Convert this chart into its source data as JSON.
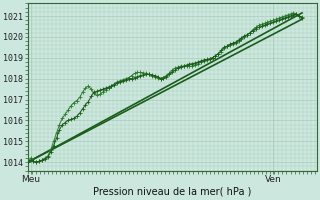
{
  "title": "Pression niveau de la mer( hPa )",
  "ylabel_ticks": [
    1014,
    1015,
    1016,
    1017,
    1018,
    1019,
    1020,
    1021
  ],
  "ylim": [
    1013.6,
    1021.6
  ],
  "xlim": [
    0,
    100
  ],
  "xtick_positions": [
    1,
    85
  ],
  "xtick_labels": [
    "Meu",
    "Ven"
  ],
  "bg_color": "#cce8de",
  "grid_color": "#aaccbb",
  "line_color_dark": "#1a5c1a",
  "line_color_med": "#2e7d2e",
  "n_points": 96,
  "series_wavy1": [
    1014.0,
    1014.2,
    1014.05,
    1014.0,
    1014.05,
    1014.1,
    1014.2,
    1014.3,
    1014.6,
    1015.0,
    1015.4,
    1015.8,
    1016.1,
    1016.3,
    1016.5,
    1016.7,
    1016.85,
    1016.95,
    1017.1,
    1017.35,
    1017.55,
    1017.65,
    1017.5,
    1017.3,
    1017.2,
    1017.25,
    1017.35,
    1017.45,
    1017.55,
    1017.65,
    1017.75,
    1017.85,
    1017.9,
    1017.95,
    1018.0,
    1018.05,
    1018.15,
    1018.25,
    1018.3,
    1018.3,
    1018.28,
    1018.25,
    1018.2,
    1018.15,
    1018.1,
    1018.05,
    1018.0,
    1018.05,
    1018.15,
    1018.25,
    1018.4,
    1018.5,
    1018.55,
    1018.6,
    1018.6,
    1018.6,
    1018.6,
    1018.6,
    1018.65,
    1018.7,
    1018.8,
    1018.85,
    1018.9,
    1018.95,
    1019.0,
    1019.1,
    1019.2,
    1019.3,
    1019.45,
    1019.55,
    1019.6,
    1019.65,
    1019.7,
    1019.8,
    1019.9,
    1020.0,
    1020.1,
    1020.2,
    1020.35,
    1020.45,
    1020.55,
    1020.6,
    1020.65,
    1020.7,
    1020.75,
    1020.8,
    1020.85,
    1020.9,
    1020.95,
    1021.0,
    1021.05,
    1021.1,
    1021.15,
    1021.1,
    1021.0,
    1020.95
  ],
  "series_wavy2": [
    1014.0,
    1014.1,
    1014.05,
    1014.0,
    1014.05,
    1014.1,
    1014.15,
    1014.25,
    1014.5,
    1014.8,
    1015.15,
    1015.55,
    1015.8,
    1015.9,
    1016.0,
    1016.05,
    1016.1,
    1016.2,
    1016.35,
    1016.55,
    1016.75,
    1016.9,
    1017.15,
    1017.35,
    1017.4,
    1017.45,
    1017.5,
    1017.55,
    1017.6,
    1017.65,
    1017.7,
    1017.8,
    1017.85,
    1017.9,
    1017.95,
    1018.0,
    1018.0,
    1018.05,
    1018.1,
    1018.15,
    1018.18,
    1018.2,
    1018.2,
    1018.18,
    1018.15,
    1018.1,
    1018.0,
    1018.05,
    1018.1,
    1018.2,
    1018.3,
    1018.4,
    1018.5,
    1018.55,
    1018.6,
    1018.65,
    1018.7,
    1018.72,
    1018.75,
    1018.8,
    1018.85,
    1018.9,
    1018.92,
    1018.95,
    1019.0,
    1019.1,
    1019.2,
    1019.35,
    1019.5,
    1019.55,
    1019.65,
    1019.7,
    1019.75,
    1019.85,
    1019.95,
    1020.05,
    1020.1,
    1020.2,
    1020.3,
    1020.4,
    1020.45,
    1020.5,
    1020.55,
    1020.6,
    1020.65,
    1020.7,
    1020.75,
    1020.8,
    1020.85,
    1020.9,
    1020.95,
    1021.0,
    1021.05,
    1021.1,
    1021.0,
    1020.9
  ],
  "line1_x": [
    0,
    95
  ],
  "line1_y": [
    1014.0,
    1021.15
  ],
  "line2_x": [
    0,
    95
  ],
  "line2_y": [
    1014.0,
    1020.85
  ]
}
